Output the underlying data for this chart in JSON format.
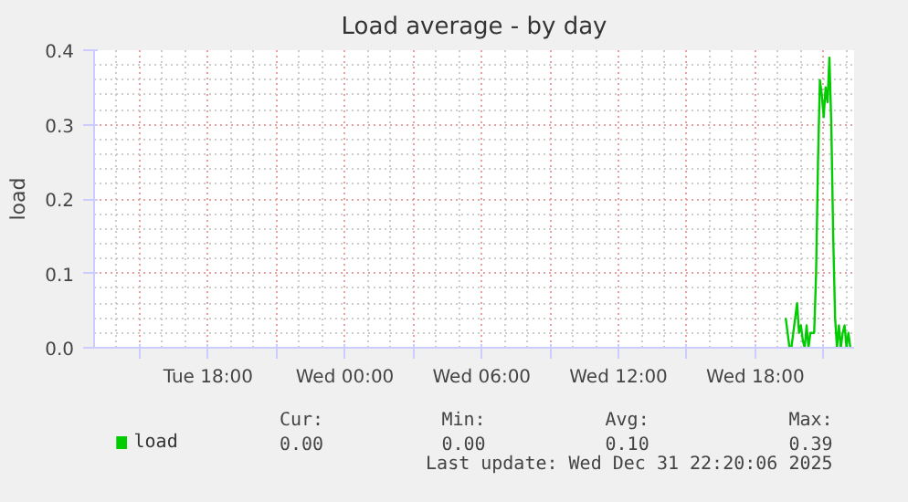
{
  "chart_data": {
    "type": "line",
    "title": "Load average - by day",
    "ylabel": "load",
    "x": [
      "2025-12-31T19:20",
      "2025-12-31T19:25",
      "2025-12-31T19:30",
      "2025-12-31T19:35",
      "2025-12-31T19:40",
      "2025-12-31T19:50",
      "2025-12-31T19:55",
      "2025-12-31T20:00",
      "2025-12-31T20:05",
      "2025-12-31T20:10",
      "2025-12-31T20:15",
      "2025-12-31T20:20",
      "2025-12-31T20:25",
      "2025-12-31T20:35",
      "2025-12-31T20:40",
      "2025-12-31T20:45",
      "2025-12-31T20:50",
      "2025-12-31T20:55",
      "2025-12-31T21:00",
      "2025-12-31T21:05",
      "2025-12-31T21:10",
      "2025-12-31T21:15",
      "2025-12-31T21:20",
      "2025-12-31T21:25",
      "2025-12-31T21:30",
      "2025-12-31T21:35",
      "2025-12-31T21:40",
      "2025-12-31T21:45",
      "2025-12-31T21:50",
      "2025-12-31T21:55",
      "2025-12-31T22:00",
      "2025-12-31T22:05",
      "2025-12-31T22:10"
    ],
    "series": [
      {
        "name": "load",
        "color": "#00cc00",
        "values": [
          0.04,
          0.02,
          0.0,
          0.0,
          0.02,
          0.06,
          0.02,
          0.03,
          0.01,
          0.0,
          0.03,
          0.0,
          0.02,
          0.02,
          0.1,
          0.25,
          0.36,
          0.34,
          0.31,
          0.35,
          0.33,
          0.39,
          0.3,
          0.15,
          0.04,
          0.0,
          0.03,
          0.0,
          0.02,
          0.03,
          0.0,
          0.02,
          0.0
        ]
      }
    ],
    "xlim": [
      "2025-12-30T13:00",
      "2025-12-31T22:20"
    ],
    "ylim": [
      0,
      0.4
    ],
    "xticks": [
      {
        "value": "2025-12-30T15:00",
        "label": null
      },
      {
        "value": "2025-12-30T18:00",
        "label": "Tue 18:00"
      },
      {
        "value": "2025-12-30T21:00",
        "label": null
      },
      {
        "value": "2025-12-31T00:00",
        "label": "Wed 00:00"
      },
      {
        "value": "2025-12-31T03:00",
        "label": null
      },
      {
        "value": "2025-12-31T06:00",
        "label": "Wed 06:00"
      },
      {
        "value": "2025-12-31T09:00",
        "label": null
      },
      {
        "value": "2025-12-31T12:00",
        "label": "Wed 12:00"
      },
      {
        "value": "2025-12-31T15:00",
        "label": null
      },
      {
        "value": "2025-12-31T18:00",
        "label": "Wed 18:00"
      },
      {
        "value": "2025-12-31T21:00",
        "label": null
      }
    ],
    "yticks": [
      {
        "value": 0,
        "label": "0.0"
      },
      0.1,
      0.2,
      0.3,
      0.4
    ],
    "grid": true,
    "legend": "bottom",
    "line_style": "solid",
    "marker": "none",
    "annotations": [
      "Cur:",
      "0.00",
      "Min:",
      "0.00",
      "Avg:",
      "0.10",
      "Max:",
      "0.39",
      "Last update: Wed Dec 31 22:20:06 2025"
    ]
  }
}
